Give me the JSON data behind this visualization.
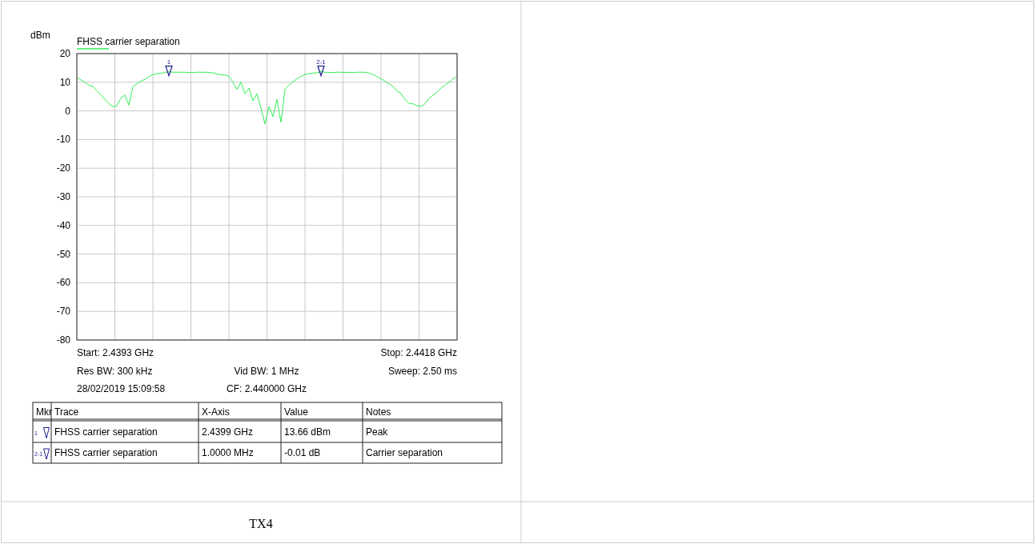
{
  "chart_data": {
    "type": "line",
    "ylabel": "dBm",
    "categories": [
      null,
      null,
      null,
      null,
      null,
      null,
      null,
      null,
      null,
      null,
      null,
      null,
      null,
      null,
      null,
      null,
      null,
      null,
      null,
      null,
      null,
      null,
      null,
      null,
      null,
      null,
      null,
      null,
      null,
      null,
      null,
      null,
      null,
      null,
      null,
      null,
      null,
      null,
      null,
      null,
      null,
      null,
      null,
      null,
      null,
      null,
      null,
      null,
      null,
      null,
      null,
      null,
      null,
      null,
      null,
      null,
      null,
      null,
      null,
      null,
      null,
      null,
      null,
      null,
      null,
      null,
      null,
      null,
      null,
      null,
      null,
      null,
      null,
      null,
      null,
      null,
      null,
      null,
      null,
      null,
      null,
      null,
      null,
      null,
      null,
      null,
      null,
      null,
      null,
      null,
      null,
      null,
      null,
      null,
      null,
      null
    ],
    "ylim": [
      -80,
      20
    ],
    "yticks": [
      20,
      10,
      0,
      -10,
      -20,
      -30,
      -40,
      -50,
      -60,
      -70,
      -80
    ],
    "grid": true,
    "legend": "top left",
    "series": [
      {
        "name": "FHSS carrier separation",
        "color": "#33ee55",
        "values": [
          11.7,
          10.8,
          10.0,
          9.0,
          8.5,
          7.0,
          5.6,
          4.0,
          2.5,
          1.5,
          1.8,
          4.5,
          5.5,
          2.0,
          8.5,
          9.5,
          10.4,
          11.0,
          12.0,
          12.6,
          13.0,
          13.1,
          13.4,
          13.66,
          13.5,
          13.5,
          13.5,
          13.5,
          13.4,
          13.4,
          13.5,
          13.5,
          13.5,
          13.4,
          13.3,
          12.9,
          12.6,
          12.5,
          12.2,
          10.0,
          7.5,
          10.0,
          6.0,
          8.0,
          3.5,
          6.0,
          1.0,
          -4.6,
          1.5,
          -2.0,
          4.0,
          -4.0,
          7.5,
          9.0,
          10.2,
          11.2,
          12.0,
          12.7,
          13.0,
          13.2,
          13.3,
          13.7,
          13.5,
          13.4,
          13.4,
          13.5,
          13.5,
          13.4,
          13.5,
          13.4,
          13.5,
          13.5,
          13.5,
          13.2,
          12.7,
          12.0,
          11.2,
          10.3,
          9.5,
          8.5,
          7.0,
          6.0,
          4.0,
          2.5,
          2.5,
          1.8,
          1.6,
          2.5,
          4.5,
          5.5,
          6.5,
          8.0,
          9.0,
          10.0,
          11.2,
          12.0
        ]
      },
      {
        "type": "scatter",
        "marker": "triangle",
        "color": "#1c1c8c",
        "values": [
          null,
          null,
          null,
          null,
          null,
          null,
          null,
          null,
          null,
          null,
          null,
          null,
          null,
          null,
          null,
          null,
          null,
          null,
          null,
          null,
          null,
          null,
          null,
          13.66,
          null,
          null,
          null,
          null,
          null,
          null,
          null,
          null,
          null,
          null,
          null,
          null,
          null,
          null,
          null,
          null,
          null,
          null,
          null,
          null,
          null,
          null,
          null,
          null,
          null,
          null,
          null,
          null,
          null,
          null,
          null,
          null,
          null,
          null,
          null,
          null,
          null,
          13.7,
          null,
          null,
          null,
          null,
          null,
          null,
          null,
          null,
          null,
          null,
          null,
          null,
          null,
          null,
          null,
          null,
          null,
          null,
          null,
          null,
          null,
          null,
          null,
          null,
          null,
          null,
          null,
          null,
          null,
          null,
          null,
          null,
          null,
          null
        ]
      }
    ],
    "annotations": [
      "1",
      "2-1",
      "Start: 2.4393 GHz",
      "Stop: 2.4418 GHz",
      "Res BW: 300 kHz",
      "Vid BW: 1 MHz",
      "Sweep: 2.50 ms",
      "28/02/2019 15:09:58",
      "CF: 2.440000 GHz",
      "Mkr",
      "Trace",
      "X-Axis",
      "Value",
      "Notes",
      "1",
      "FHSS carrier separation",
      "2.4399 GHz",
      "13.66 dBm",
      "Peak",
      "2-1",
      "FHSS carrier separation",
      "1.0000 MHz",
      "-0.01 dB",
      "Carrier separation",
      "TX4"
    ]
  }
}
